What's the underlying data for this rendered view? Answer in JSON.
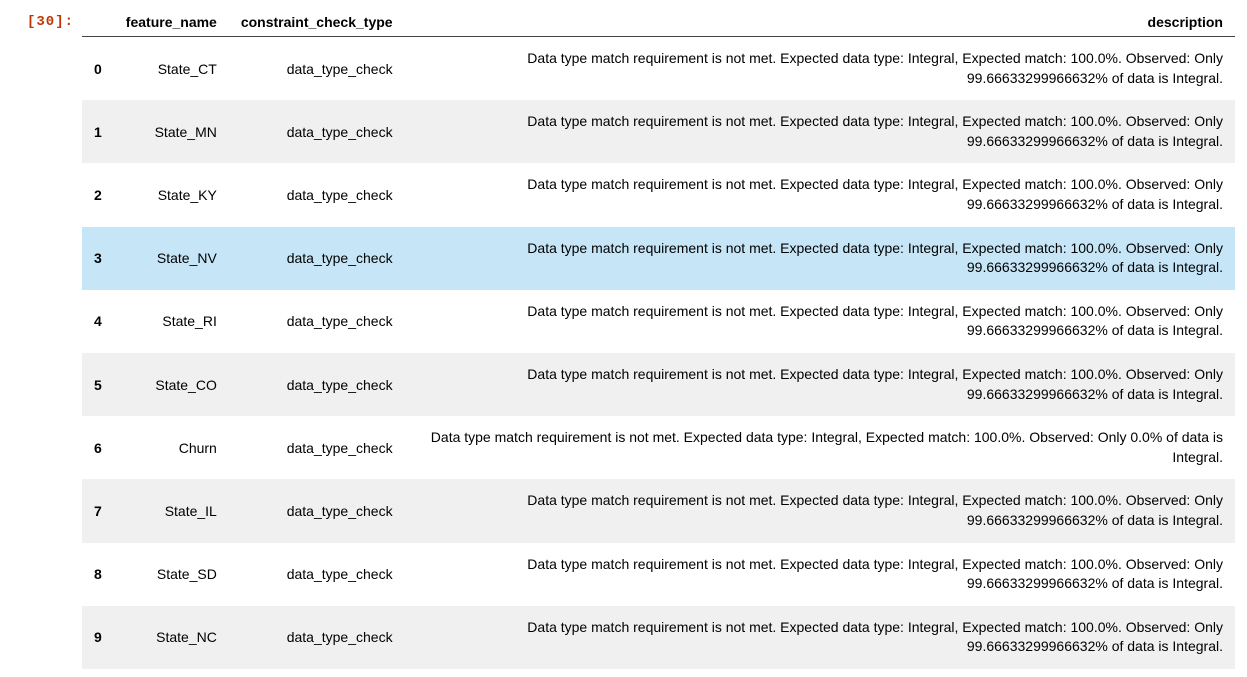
{
  "prompt": "[30]:",
  "table": {
    "columns": [
      "feature_name",
      "constraint_check_type",
      "description"
    ],
    "highlight_row_index": 3,
    "colors": {
      "prompt": "#bf3604",
      "row_odd_bg": "#f0f0f0",
      "row_even_bg": "#ffffff",
      "highlight_bg": "#c6e6f8",
      "header_border": "#444444",
      "text": "#000000",
      "background": "#ffffff"
    },
    "fontsize_body": 14,
    "fontsize_header": 14,
    "rows": [
      {
        "idx": "0",
        "feature_name": "State_CT",
        "constraint_check_type": "data_type_check",
        "description": "Data type match requirement is not met. Expected data type: Integral, Expected match: 100.0%. Observed: Only 99.66633299966632% of data is Integral."
      },
      {
        "idx": "1",
        "feature_name": "State_MN",
        "constraint_check_type": "data_type_check",
        "description": "Data type match requirement is not met. Expected data type: Integral, Expected match: 100.0%. Observed: Only 99.66633299966632% of data is Integral."
      },
      {
        "idx": "2",
        "feature_name": "State_KY",
        "constraint_check_type": "data_type_check",
        "description": "Data type match requirement is not met. Expected data type: Integral, Expected match: 100.0%. Observed: Only 99.66633299966632% of data is Integral."
      },
      {
        "idx": "3",
        "feature_name": "State_NV",
        "constraint_check_type": "data_type_check",
        "description": "Data type match requirement is not met. Expected data type: Integral, Expected match: 100.0%. Observed: Only 99.66633299966632% of data is Integral."
      },
      {
        "idx": "4",
        "feature_name": "State_RI",
        "constraint_check_type": "data_type_check",
        "description": "Data type match requirement is not met. Expected data type: Integral, Expected match: 100.0%. Observed: Only 99.66633299966632% of data is Integral."
      },
      {
        "idx": "5",
        "feature_name": "State_CO",
        "constraint_check_type": "data_type_check",
        "description": "Data type match requirement is not met. Expected data type: Integral, Expected match: 100.0%. Observed: Only 99.66633299966632% of data is Integral."
      },
      {
        "idx": "6",
        "feature_name": "Churn",
        "constraint_check_type": "data_type_check",
        "description": "Data type match requirement is not met. Expected data type: Integral, Expected match: 100.0%. Observed: Only 0.0% of data is Integral."
      },
      {
        "idx": "7",
        "feature_name": "State_IL",
        "constraint_check_type": "data_type_check",
        "description": "Data type match requirement is not met. Expected data type: Integral, Expected match: 100.0%. Observed: Only 99.66633299966632% of data is Integral."
      },
      {
        "idx": "8",
        "feature_name": "State_SD",
        "constraint_check_type": "data_type_check",
        "description": "Data type match requirement is not met. Expected data type: Integral, Expected match: 100.0%. Observed: Only 99.66633299966632% of data is Integral."
      },
      {
        "idx": "9",
        "feature_name": "State_NC",
        "constraint_check_type": "data_type_check",
        "description": "Data type match requirement is not met. Expected data type: Integral, Expected match: 100.0%. Observed: Only 99.66633299966632% of data is Integral."
      }
    ]
  }
}
